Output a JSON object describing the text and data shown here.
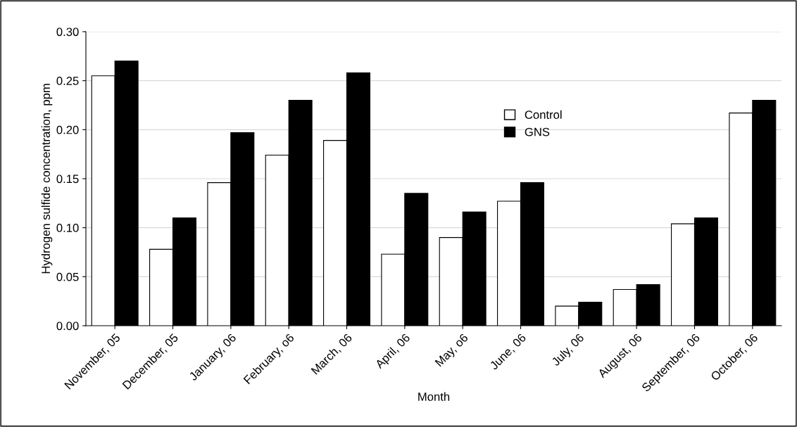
{
  "chart_data": {
    "type": "bar",
    "xlabel": "Month",
    "ylabel": "Hydrogen sulfide concentration, ppm",
    "categories": [
      "November, 05",
      "December, 05",
      "January, 06",
      "February, o6",
      "March, 06",
      "April, 06",
      "May, o6",
      "June, 06",
      "July, 06",
      "August, 06",
      "September, 06",
      "October, 06"
    ],
    "series": [
      {
        "name": "Control",
        "color": "#ffffff",
        "values": [
          0.255,
          0.078,
          0.146,
          0.174,
          0.189,
          0.073,
          0.09,
          0.127,
          0.02,
          0.037,
          0.104,
          0.217
        ]
      },
      {
        "name": "GNS",
        "color": "#000000",
        "values": [
          0.27,
          0.11,
          0.197,
          0.23,
          0.258,
          0.135,
          0.116,
          0.146,
          0.024,
          0.042,
          0.11,
          0.23
        ]
      }
    ],
    "ylim": [
      0,
      0.3
    ],
    "yticks": [
      {
        "value": 0,
        "label": "0.00"
      },
      {
        "value": 0.05,
        "label": "0.05"
      },
      {
        "value": 0.1,
        "label": "0.10"
      },
      {
        "value": 0.15,
        "label": "0.15"
      },
      {
        "value": 0.2,
        "label": "0.20"
      },
      {
        "value": 0.25,
        "label": "0.25"
      },
      {
        "value": 0.3,
        "label": "0.30"
      }
    ],
    "grid": "y",
    "legend": "top right"
  }
}
